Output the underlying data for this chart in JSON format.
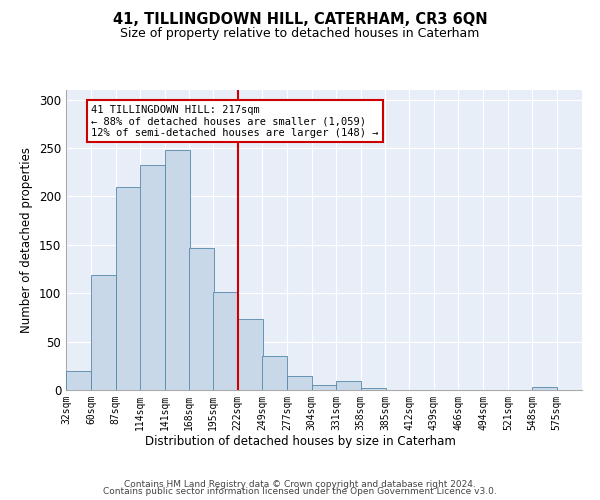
{
  "title": "41, TILLINGDOWN HILL, CATERHAM, CR3 6QN",
  "subtitle": "Size of property relative to detached houses in Caterham",
  "xlabel": "Distribution of detached houses by size in Caterham",
  "ylabel": "Number of detached properties",
  "bar_color": "#c8d8e8",
  "bar_edge_color": "#5588aa",
  "background_color": "#e8eef8",
  "grid_color": "#ffffff",
  "vline_color": "#cc0000",
  "annotation_text": "41 TILLINGDOWN HILL: 217sqm\n← 88% of detached houses are smaller (1,059)\n12% of semi-detached houses are larger (148) →",
  "annotation_box_color": "#cc0000",
  "footer_line1": "Contains HM Land Registry data © Crown copyright and database right 2024.",
  "footer_line2": "Contains public sector information licensed under the Open Government Licence v3.0.",
  "bin_labels": [
    "32sqm",
    "60sqm",
    "87sqm",
    "114sqm",
    "141sqm",
    "168sqm",
    "195sqm",
    "222sqm",
    "249sqm",
    "277sqm",
    "304sqm",
    "331sqm",
    "358sqm",
    "385sqm",
    "412sqm",
    "439sqm",
    "466sqm",
    "494sqm",
    "521sqm",
    "548sqm",
    "575sqm"
  ],
  "bin_edges": [
    32,
    60,
    87,
    114,
    141,
    168,
    195,
    222,
    249,
    277,
    304,
    331,
    358,
    385,
    412,
    439,
    466,
    494,
    521,
    548,
    575
  ],
  "bar_heights": [
    20,
    119,
    210,
    232,
    248,
    147,
    101,
    73,
    35,
    14,
    5,
    9,
    2,
    0,
    0,
    0,
    0,
    0,
    0,
    3
  ],
  "ylim": [
    0,
    310
  ],
  "yticks": [
    0,
    50,
    100,
    150,
    200,
    250,
    300
  ]
}
